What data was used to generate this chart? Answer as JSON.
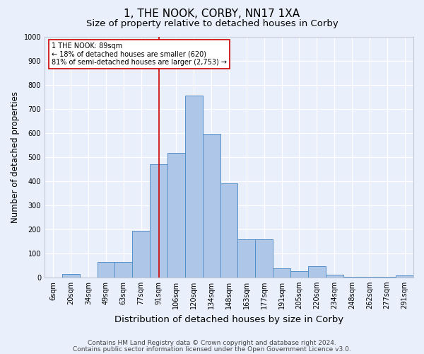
{
  "title": "1, THE NOOK, CORBY, NN17 1XA",
  "subtitle": "Size of property relative to detached houses in Corby",
  "xlabel": "Distribution of detached houses by size in Corby",
  "ylabel": "Number of detached properties",
  "categories": [
    "6sqm",
    "20sqm",
    "34sqm",
    "49sqm",
    "63sqm",
    "77sqm",
    "91sqm",
    "106sqm",
    "120sqm",
    "134sqm",
    "148sqm",
    "163sqm",
    "177sqm",
    "191sqm",
    "205sqm",
    "220sqm",
    "234sqm",
    "248sqm",
    "262sqm",
    "277sqm",
    "291sqm"
  ],
  "values": [
    0,
    13,
    0,
    65,
    65,
    193,
    470,
    517,
    755,
    597,
    390,
    157,
    157,
    38,
    25,
    45,
    10,
    3,
    3,
    3,
    8
  ],
  "bar_color": "#aec6e8",
  "bar_edge_color": "#5590c8",
  "bg_color": "#eaf0fb",
  "grid_color": "#ffffff",
  "vline_x": 6,
  "vline_color": "#cc0000",
  "annotation_text": "1 THE NOOK: 89sqm\n← 18% of detached houses are smaller (620)\n81% of semi-detached houses are larger (2,753) →",
  "annotation_box_color": "#ffffff",
  "annotation_box_edge": "#cc0000",
  "ylim": [
    0,
    1000
  ],
  "yticks": [
    0,
    100,
    200,
    300,
    400,
    500,
    600,
    700,
    800,
    900,
    1000
  ],
  "footer1": "Contains HM Land Registry data © Crown copyright and database right 2024.",
  "footer2": "Contains public sector information licensed under the Open Government Licence v3.0.",
  "title_fontsize": 11,
  "subtitle_fontsize": 9.5,
  "xlabel_fontsize": 9.5,
  "ylabel_fontsize": 8.5,
  "tick_fontsize": 7,
  "footer_fontsize": 6.5,
  "annotation_fontsize": 7
}
